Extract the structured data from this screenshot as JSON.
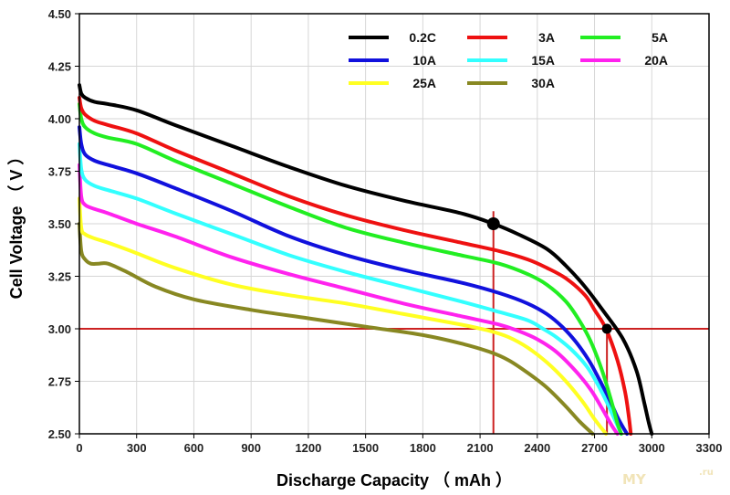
{
  "chart_data": {
    "type": "line",
    "xlabel": "Discharge Capacity （ mAh ）",
    "ylabel": "Cell Voltage （ V ）",
    "xlim": [
      0,
      3300
    ],
    "ylim": [
      2.5,
      4.5
    ],
    "x_ticks": [
      0,
      300,
      600,
      900,
      1200,
      1500,
      1800,
      2100,
      2400,
      2700,
      3000,
      3300
    ],
    "y_ticks": [
      2.5,
      2.75,
      3.0,
      3.25,
      3.5,
      3.75,
      4.0,
      4.25,
      4.5
    ],
    "grid": true,
    "legend_position": "top-right",
    "series": [
      {
        "name": "0.2C",
        "color": "#000000",
        "x": [
          0,
          10,
          30,
          80,
          150,
          300,
          500,
          800,
          1100,
          1400,
          1700,
          2000,
          2170,
          2300,
          2450,
          2550,
          2650,
          2750,
          2850,
          2920,
          2960,
          2985,
          3000
        ],
        "y": [
          4.16,
          4.12,
          4.1,
          4.08,
          4.07,
          4.04,
          3.97,
          3.87,
          3.77,
          3.68,
          3.61,
          3.55,
          3.5,
          3.45,
          3.38,
          3.3,
          3.2,
          3.08,
          2.95,
          2.8,
          2.65,
          2.55,
          2.5
        ]
      },
      {
        "name": "3A",
        "color": "#ee1111",
        "x": [
          0,
          10,
          30,
          80,
          150,
          300,
          500,
          800,
          1100,
          1400,
          1700,
          2000,
          2200,
          2350,
          2450,
          2550,
          2650,
          2700,
          2760,
          2820,
          2860,
          2880,
          2890
        ],
        "y": [
          4.1,
          4.05,
          4.02,
          3.99,
          3.97,
          3.93,
          3.85,
          3.74,
          3.63,
          3.54,
          3.47,
          3.41,
          3.37,
          3.33,
          3.29,
          3.24,
          3.16,
          3.09,
          3.0,
          2.85,
          2.7,
          2.58,
          2.5
        ]
      },
      {
        "name": "5A",
        "color": "#22ee22",
        "x": [
          0,
          10,
          30,
          80,
          150,
          300,
          500,
          800,
          1100,
          1400,
          1700,
          2000,
          2200,
          2350,
          2450,
          2550,
          2620,
          2680,
          2740,
          2790,
          2820,
          2840
        ],
        "y": [
          4.07,
          4.0,
          3.96,
          3.93,
          3.91,
          3.88,
          3.8,
          3.69,
          3.58,
          3.48,
          3.41,
          3.35,
          3.31,
          3.26,
          3.21,
          3.13,
          3.04,
          2.94,
          2.8,
          2.65,
          2.55,
          2.5
        ]
      },
      {
        "name": "10A",
        "color": "#1111dd",
        "x": [
          0,
          10,
          30,
          80,
          150,
          300,
          500,
          800,
          1100,
          1400,
          1700,
          2000,
          2200,
          2350,
          2450,
          2530,
          2600,
          2670,
          2730,
          2780,
          2820,
          2850,
          2870
        ],
        "y": [
          3.96,
          3.88,
          3.83,
          3.8,
          3.78,
          3.74,
          3.67,
          3.56,
          3.44,
          3.35,
          3.28,
          3.22,
          3.17,
          3.12,
          3.07,
          3.01,
          2.94,
          2.85,
          2.75,
          2.66,
          2.58,
          2.53,
          2.5
        ]
      },
      {
        "name": "15A",
        "color": "#33ffff",
        "x": [
          0,
          10,
          30,
          80,
          150,
          300,
          500,
          800,
          1100,
          1400,
          1700,
          2000,
          2200,
          2350,
          2430,
          2500,
          2580,
          2660,
          2720,
          2770,
          2800,
          2840
        ],
        "y": [
          3.88,
          3.76,
          3.71,
          3.68,
          3.66,
          3.62,
          3.55,
          3.45,
          3.35,
          3.27,
          3.2,
          3.13,
          3.08,
          3.04,
          3.0,
          2.96,
          2.9,
          2.82,
          2.73,
          2.64,
          2.58,
          2.5
        ]
      },
      {
        "name": "20A",
        "color": "#ff22ee",
        "x": [
          0,
          10,
          30,
          80,
          150,
          300,
          500,
          800,
          1100,
          1400,
          1700,
          2000,
          2200,
          2300,
          2400,
          2500,
          2600,
          2680,
          2740,
          2790,
          2820
        ],
        "y": [
          3.78,
          3.63,
          3.59,
          3.57,
          3.55,
          3.5,
          3.44,
          3.34,
          3.26,
          3.19,
          3.12,
          3.06,
          3.02,
          2.99,
          2.95,
          2.89,
          2.8,
          2.71,
          2.62,
          2.54,
          2.5
        ]
      },
      {
        "name": "25A",
        "color": "#ffff22",
        "x": [
          0,
          10,
          30,
          80,
          150,
          300,
          500,
          800,
          1100,
          1400,
          1700,
          2000,
          2150,
          2250,
          2350,
          2450,
          2550,
          2640,
          2700,
          2760
        ],
        "y": [
          3.62,
          3.48,
          3.45,
          3.43,
          3.41,
          3.36,
          3.29,
          3.21,
          3.16,
          3.12,
          3.07,
          3.02,
          2.99,
          2.96,
          2.91,
          2.84,
          2.75,
          2.65,
          2.57,
          2.5
        ]
      },
      {
        "name": "30A",
        "color": "#888822",
        "x": [
          0,
          10,
          30,
          60,
          100,
          150,
          250,
          400,
          600,
          900,
          1200,
          1500,
          1800,
          2000,
          2150,
          2250,
          2350,
          2450,
          2550,
          2620,
          2690
        ],
        "y": [
          3.5,
          3.37,
          3.33,
          3.31,
          3.31,
          3.31,
          3.27,
          3.2,
          3.14,
          3.09,
          3.05,
          3.01,
          2.97,
          2.93,
          2.89,
          2.85,
          2.79,
          2.72,
          2.63,
          2.56,
          2.5
        ]
      }
    ],
    "reference_lines": [
      {
        "orientation": "horizontal",
        "y": 3.0,
        "color": "#cc2222"
      },
      {
        "orientation": "vertical",
        "x": 2170,
        "y_range": [
          2.5,
          3.56
        ],
        "color": "#cc2222"
      },
      {
        "orientation": "vertical",
        "x": 2765,
        "y_range": [
          2.5,
          3.0
        ],
        "color": "#cc2222"
      }
    ],
    "markers": [
      {
        "x": 2170,
        "y": 3.5,
        "size": "large",
        "color": "#000000"
      },
      {
        "x": 2765,
        "y": 3.0,
        "size": "small",
        "color": "#000000"
      }
    ]
  },
  "watermark": {
    "text": "MY",
    "suffix": ".ru"
  }
}
